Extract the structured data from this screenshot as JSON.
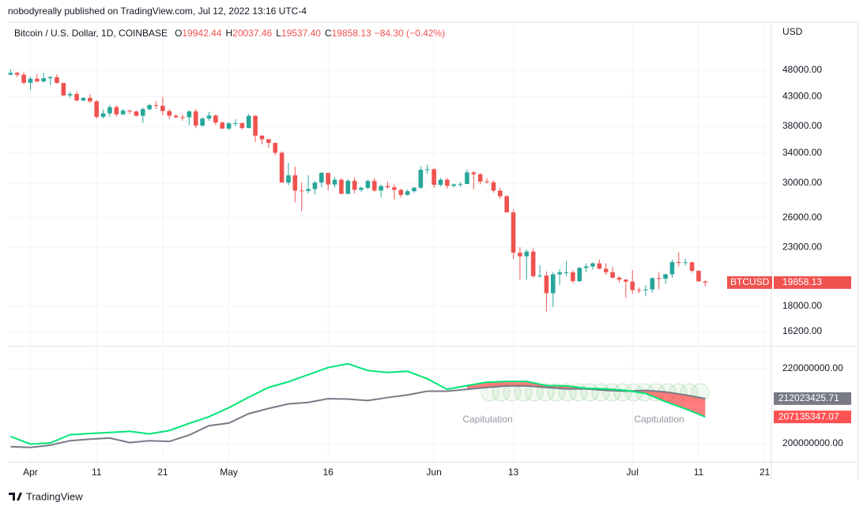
{
  "page": {
    "published": "nobodyreally published on TradingView.com, Jul 12, 2022 13:16 UTC-4",
    "brand": "TradingView",
    "currency": "USD"
  },
  "chart_data": [
    {
      "type": "candlestick",
      "title": "Bitcoin / U.S. Dollar, 1D, COINBASE",
      "ohlc_text": [
        {
          "key": "O",
          "value": "19942.44"
        },
        {
          "key": "H",
          "value": "20037.46"
        },
        {
          "key": "L",
          "value": "19537.40"
        },
        {
          "key": "C",
          "value": "19858.13"
        }
      ],
      "change": "−84.30 (−0.42%)",
      "symbol": "BTCUSD",
      "colors": {
        "up": "#26a69a",
        "down": "#ef5350"
      },
      "log_scale": true,
      "grid": true,
      "xlim": [
        "2022-03-28",
        "2022-07-22"
      ],
      "xticks": [
        {
          "value": "2022-04-01",
          "label": "Apr"
        },
        {
          "value": "2022-04-11",
          "label": "11"
        },
        {
          "value": "2022-04-21",
          "label": "21"
        },
        {
          "value": "2022-05-01",
          "label": "May"
        },
        {
          "value": "2022-05-16",
          "label": "16"
        },
        {
          "value": "2022-06-01",
          "label": "Jun"
        },
        {
          "value": "2022-06-13",
          "label": "13"
        },
        {
          "value": "2022-07-01",
          "label": "Jul"
        },
        {
          "value": "2022-07-11",
          "label": "11"
        },
        {
          "value": "2022-07-21",
          "label": "21"
        }
      ],
      "ylim": [
        15270,
        58200
      ],
      "yticks": [
        {
          "value": 48000,
          "label": "48000.00"
        },
        {
          "value": 43000,
          "label": "43000.00"
        },
        {
          "value": 38000,
          "label": "38000.00"
        },
        {
          "value": 34000,
          "label": "34000.00"
        },
        {
          "value": 30000,
          "label": "30000.00"
        },
        {
          "value": 26000,
          "label": "26000.00"
        },
        {
          "value": 23000,
          "label": "23000.00"
        },
        {
          "value": 18000,
          "label": "18000.00"
        },
        {
          "value": 16200,
          "label": "16200.00"
        }
      ],
      "x": [
        "2022-03-29",
        "2022-03-30",
        "2022-03-31",
        "2022-04-01",
        "2022-04-02",
        "2022-04-03",
        "2022-04-04",
        "2022-04-05",
        "2022-04-06",
        "2022-04-07",
        "2022-04-08",
        "2022-04-09",
        "2022-04-10",
        "2022-04-11",
        "2022-04-12",
        "2022-04-13",
        "2022-04-14",
        "2022-04-15",
        "2022-04-16",
        "2022-04-17",
        "2022-04-18",
        "2022-04-19",
        "2022-04-20",
        "2022-04-21",
        "2022-04-22",
        "2022-04-23",
        "2022-04-24",
        "2022-04-25",
        "2022-04-26",
        "2022-04-27",
        "2022-04-28",
        "2022-04-29",
        "2022-04-30",
        "2022-05-01",
        "2022-05-02",
        "2022-05-03",
        "2022-05-04",
        "2022-05-05",
        "2022-05-06",
        "2022-05-07",
        "2022-05-08",
        "2022-05-09",
        "2022-05-10",
        "2022-05-11",
        "2022-05-12",
        "2022-05-13",
        "2022-05-14",
        "2022-05-15",
        "2022-05-16",
        "2022-05-17",
        "2022-05-18",
        "2022-05-19",
        "2022-05-20",
        "2022-05-21",
        "2022-05-22",
        "2022-05-23",
        "2022-05-24",
        "2022-05-25",
        "2022-05-26",
        "2022-05-27",
        "2022-05-28",
        "2022-05-29",
        "2022-05-30",
        "2022-05-31",
        "2022-06-01",
        "2022-06-02",
        "2022-06-03",
        "2022-06-04",
        "2022-06-05",
        "2022-06-06",
        "2022-06-07",
        "2022-06-08",
        "2022-06-09",
        "2022-06-10",
        "2022-06-11",
        "2022-06-12",
        "2022-06-13",
        "2022-06-14",
        "2022-06-15",
        "2022-06-16",
        "2022-06-17",
        "2022-06-18",
        "2022-06-19",
        "2022-06-20",
        "2022-06-21",
        "2022-06-22",
        "2022-06-23",
        "2022-06-24",
        "2022-06-25",
        "2022-06-26",
        "2022-06-27",
        "2022-06-28",
        "2022-06-29",
        "2022-06-30",
        "2022-07-01",
        "2022-07-02",
        "2022-07-03",
        "2022-07-04",
        "2022-07-05",
        "2022-07-06",
        "2022-07-07",
        "2022-07-08",
        "2022-07-09",
        "2022-07-10",
        "2022-07-11",
        "2022-07-12"
      ],
      "open": [
        47100,
        47450,
        47070,
        45530,
        46300,
        45800,
        46400,
        46600,
        45500,
        43200,
        43450,
        42300,
        42770,
        42150,
        39530,
        40100,
        41150,
        39940,
        40550,
        40400,
        39700,
        40800,
        41500,
        41370,
        40480,
        39710,
        39470,
        39450,
        40430,
        38120,
        39240,
        39740,
        38600,
        37640,
        38470,
        38520,
        37730,
        39690,
        36550,
        36000,
        35470,
        34050,
        30080,
        31000,
        29100,
        29050,
        29280,
        30080,
        31320,
        29840,
        30430,
        28700,
        30300,
        29180,
        29430,
        30280,
        29100,
        29650,
        29500,
        29180,
        28580,
        29020,
        29440,
        31730,
        31790,
        29800,
        30440,
        29680,
        29860,
        29900,
        31370,
        31130,
        30200,
        30110,
        29090,
        28420,
        26580,
        22480,
        22140,
        22580,
        20390,
        20440,
        19000,
        20550,
        20720,
        20720,
        19970,
        21100,
        21230,
        21500,
        21030,
        20730,
        20260,
        20100,
        19930,
        19250,
        19240,
        19300,
        20220,
        20180,
        20550,
        21620,
        21580,
        21600,
        20850,
        19942.44
      ],
      "high": [
        48100,
        47700,
        47600,
        46700,
        47200,
        47450,
        46900,
        47200,
        45500,
        43900,
        43950,
        42800,
        43450,
        42400,
        40700,
        41550,
        41500,
        40850,
        40700,
        40600,
        41100,
        41750,
        42200,
        42950,
        40800,
        39980,
        39900,
        40600,
        40800,
        39450,
        40350,
        39900,
        38800,
        38700,
        39150,
        38600,
        40000,
        39800,
        36650,
        36100,
        35500,
        34250,
        32650,
        32150,
        30100,
        31000,
        30300,
        31400,
        31320,
        30750,
        30650,
        30500,
        30750,
        29600,
        30450,
        30650,
        29850,
        30200,
        29850,
        29350,
        29200,
        29550,
        32200,
        32400,
        31950,
        30650,
        30650,
        29950,
        30150,
        31750,
        31550,
        31300,
        30650,
        30350,
        29450,
        28550,
        26900,
        23000,
        22800,
        22900,
        21350,
        20800,
        20750,
        21000,
        21720,
        20900,
        21200,
        21500,
        21600,
        21850,
        21500,
        21200,
        20400,
        20150,
        20900,
        19450,
        19650,
        20300,
        20750,
        20600,
        21850,
        22500,
        21950,
        21650,
        20880,
        20037.46
      ],
      "low": [
        46950,
        46650,
        45200,
        44200,
        45600,
        45550,
        45100,
        45350,
        43100,
        42750,
        42150,
        42150,
        41900,
        39200,
        39250,
        39570,
        39570,
        39770,
        40000,
        39550,
        38550,
        40580,
        40850,
        39750,
        39200,
        39300,
        38900,
        38200,
        37700,
        37900,
        38900,
        38200,
        37600,
        37400,
        38050,
        37500,
        37700,
        35600,
        35250,
        34750,
        33700,
        30050,
        29750,
        27700,
        26700,
        28750,
        28650,
        29500,
        29100,
        29450,
        28700,
        28700,
        28750,
        28950,
        29250,
        28900,
        28300,
        29300,
        28050,
        28250,
        28500,
        28800,
        29300,
        31200,
        29400,
        29600,
        29300,
        29500,
        29500,
        29900,
        29250,
        29850,
        29950,
        28850,
        28100,
        26600,
        21900,
        20100,
        20100,
        20250,
        20250,
        17600,
        17950,
        19650,
        20400,
        19800,
        19900,
        20750,
        20950,
        21000,
        20500,
        20200,
        19850,
        18650,
        18950,
        19000,
        18750,
        19050,
        19300,
        19750,
        20250,
        21200,
        21300,
        20700,
        19900,
        19537.4
      ],
      "close": [
        47450,
        47070,
        45530,
        46300,
        45800,
        46400,
        46600,
        45500,
        43200,
        43450,
        42300,
        42770,
        42150,
        39530,
        40100,
        41150,
        39940,
        40550,
        40400,
        39700,
        40800,
        41500,
        41370,
        40480,
        39710,
        39470,
        39450,
        40430,
        38120,
        39240,
        39740,
        38600,
        37640,
        38470,
        38520,
        37730,
        39690,
        36550,
        36000,
        35470,
        34050,
        30080,
        31000,
        29100,
        29050,
        29280,
        30080,
        31320,
        29840,
        30430,
        28700,
        30300,
        29180,
        29430,
        30280,
        29100,
        29650,
        29500,
        29180,
        28580,
        29020,
        29440,
        31730,
        31790,
        29800,
        30440,
        29680,
        29860,
        29900,
        31370,
        31130,
        30200,
        30110,
        29090,
        28420,
        26580,
        22480,
        22140,
        22580,
        20390,
        20440,
        19000,
        20550,
        20720,
        20720,
        19970,
        21100,
        21230,
        21500,
        21030,
        20730,
        20260,
        20100,
        19930,
        19250,
        19240,
        19300,
        20220,
        20180,
        20550,
        21620,
        21580,
        21600,
        20850,
        19960,
        19858.13
      ]
    },
    {
      "type": "line",
      "grid": true,
      "ylim": [
        195160000,
        225680000
      ],
      "yticks": [
        {
          "value": 220000000,
          "label": "220000000.00"
        },
        {
          "value": 200000000,
          "label": "200000000.00"
        }
      ],
      "x": [
        "2022-03-29",
        "2022-04-01",
        "2022-04-04",
        "2022-04-07",
        "2022-04-10",
        "2022-04-13",
        "2022-04-16",
        "2022-04-19",
        "2022-04-22",
        "2022-04-25",
        "2022-04-28",
        "2022-05-01",
        "2022-05-04",
        "2022-05-07",
        "2022-05-10",
        "2022-05-13",
        "2022-05-16",
        "2022-05-19",
        "2022-05-22",
        "2022-05-25",
        "2022-05-28",
        "2022-05-31",
        "2022-06-03",
        "2022-06-06",
        "2022-06-09",
        "2022-06-12",
        "2022-06-15",
        "2022-06-18",
        "2022-06-21",
        "2022-06-24",
        "2022-06-27",
        "2022-06-30",
        "2022-07-03",
        "2022-07-06",
        "2022-07-09",
        "2022-07-12"
      ],
      "series": [
        {
          "color": "#787b86",
          "values": [
            199200000,
            199000000,
            199600000,
            200800000,
            201200000,
            201500000,
            200300000,
            200800000,
            200600000,
            202300000,
            204800000,
            205500000,
            208000000,
            209400000,
            210600000,
            211000000,
            212000000,
            211900000,
            211500000,
            212300000,
            213000000,
            214000000,
            214000000,
            214500000,
            215000000,
            215400000,
            215400000,
            215000000,
            214600000,
            214600000,
            214200000,
            214000000,
            214200000,
            213800000,
            213000000,
            212023425.71
          ]
        },
        {
          "color": "#00e676",
          "values": [
            201900000,
            199900000,
            200200000,
            202400000,
            202700000,
            203000000,
            203300000,
            202600000,
            203500000,
            205400000,
            207200000,
            209600000,
            212400000,
            215000000,
            216500000,
            218400000,
            220300000,
            221300000,
            219500000,
            219000000,
            219300000,
            217300000,
            214500000,
            215500000,
            216400000,
            216600000,
            216600000,
            215500000,
            215400000,
            214800000,
            214600000,
            214200000,
            213400000,
            211200000,
            209300000,
            207135347.07
          ]
        }
      ],
      "fill_color": "#ff5252",
      "annotations": [
        "Capitulation",
        "Capitulation"
      ]
    }
  ]
}
